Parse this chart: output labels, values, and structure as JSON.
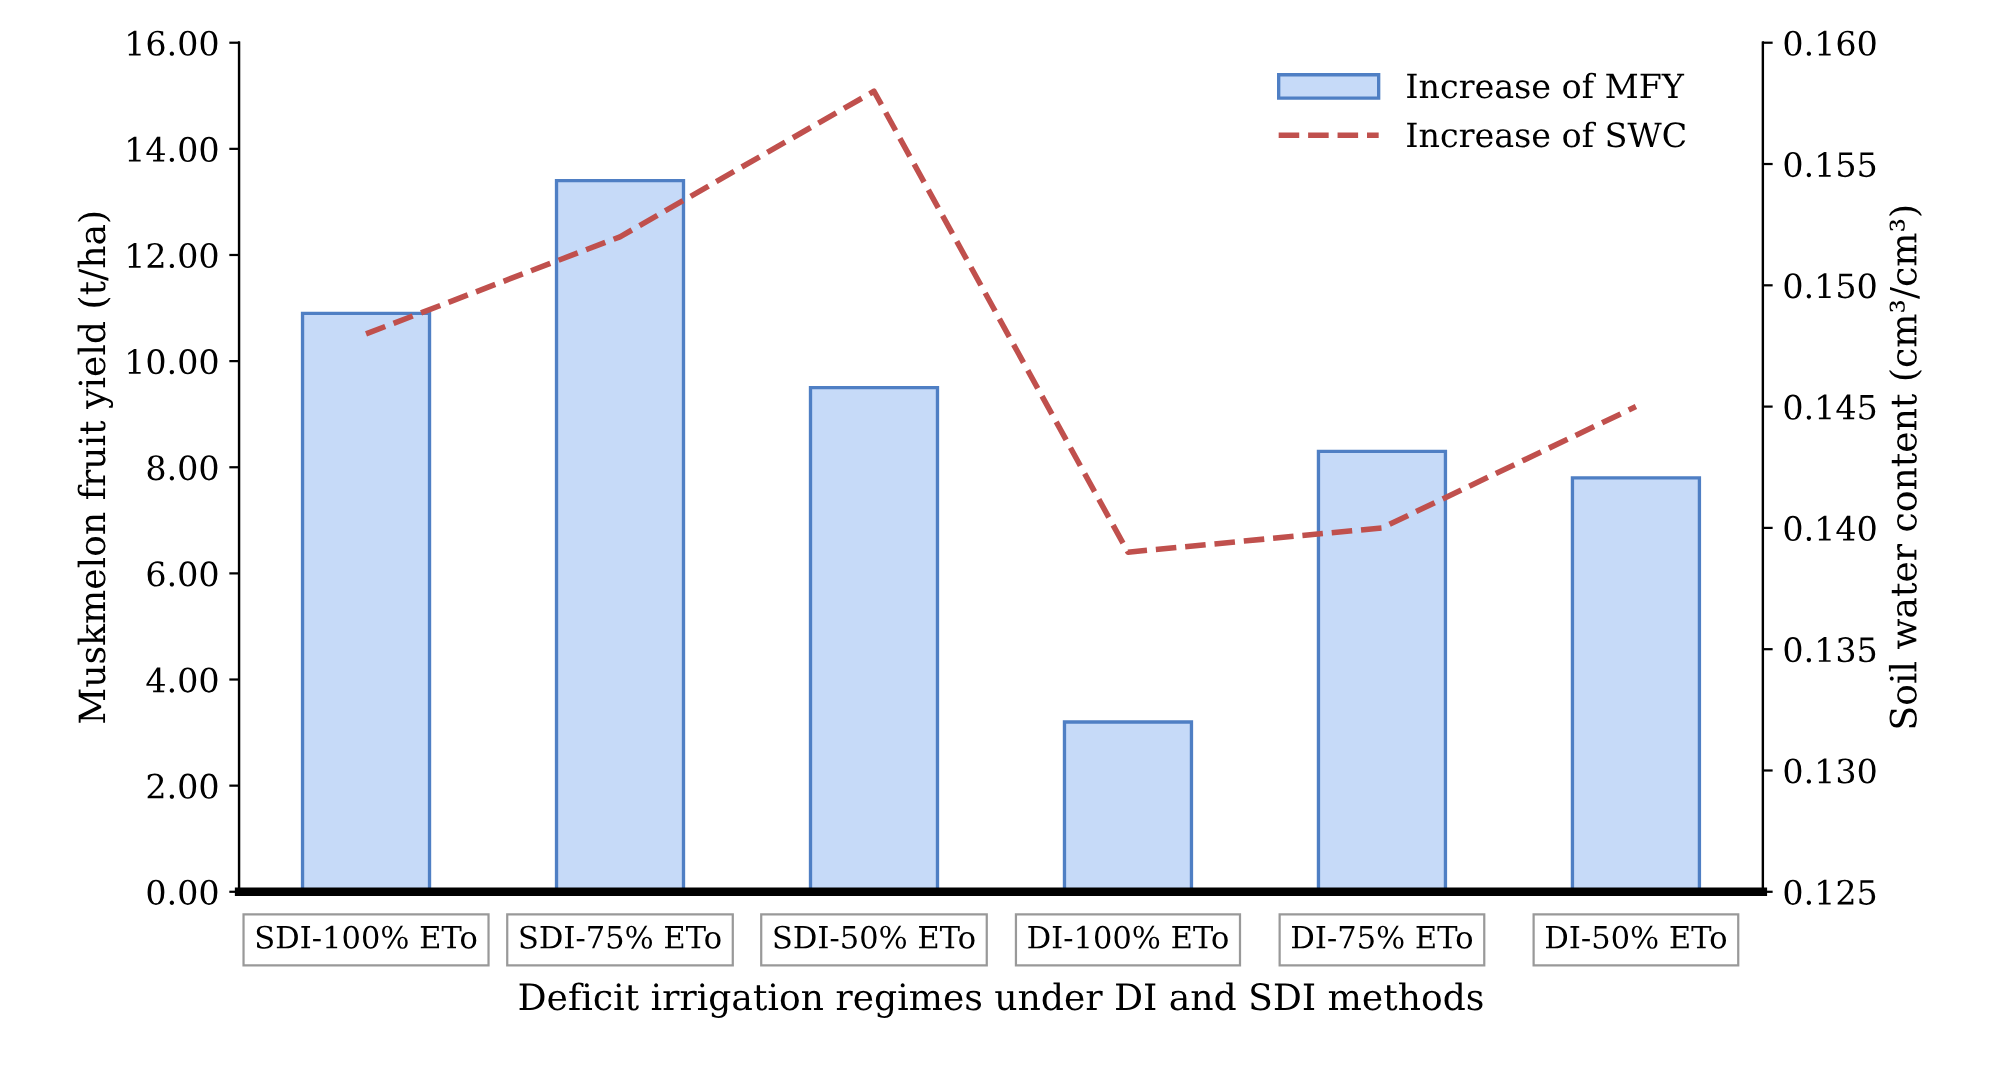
{
  "chart_data": {
    "type": "bar",
    "xlabel": "Deficit irrigation regimes under DI and SDI methods",
    "ylabel": "Muskmelon fruit yield (t/ha)",
    "y2label": "Soil water content (cm³/cm³)",
    "categories": [
      "SDI-100% ETo",
      "SDI-75% ETo",
      "SDI-50% ETo",
      "DI-100% ETo",
      "DI-75% ETo",
      "DI-50% ETo"
    ],
    "series": [
      {
        "name": "Increase of MFY",
        "color": "#c6daf8",
        "values": [
          10.9,
          13.4,
          9.5,
          3.2,
          8.3,
          7.8
        ]
      },
      {
        "name": "Increase of SWC",
        "type": "line",
        "axis": "y2",
        "color": "#c0504d",
        "line_style": "dashed",
        "marker": "none",
        "values": [
          0.148,
          0.152,
          0.158,
          0.139,
          0.14,
          0.145
        ]
      }
    ],
    "ylim": [
      0,
      16
    ],
    "yticks": [
      {
        "value": 0,
        "label": "0.00"
      },
      {
        "value": 2,
        "label": "2.00"
      },
      {
        "value": 4,
        "label": "4.00"
      },
      {
        "value": 6,
        "label": "6.00"
      },
      {
        "value": 8,
        "label": "8.00"
      },
      {
        "value": 10,
        "label": "10.00"
      },
      {
        "value": 12,
        "label": "12.00"
      },
      {
        "value": 14,
        "label": "14.00"
      },
      {
        "value": 16,
        "label": "16.00"
      }
    ],
    "y2lim": [
      0.125,
      0.16
    ],
    "y2ticks": [
      0.125,
      {
        "value": 0.13,
        "label": "0.130"
      },
      0.135,
      {
        "value": 0.14,
        "label": "0.140"
      },
      0.145,
      {
        "value": 0.15,
        "label": "0.150"
      },
      0.155,
      {
        "value": 0.16,
        "label": "0.160"
      }
    ],
    "grid": false,
    "legend": "top right"
  }
}
